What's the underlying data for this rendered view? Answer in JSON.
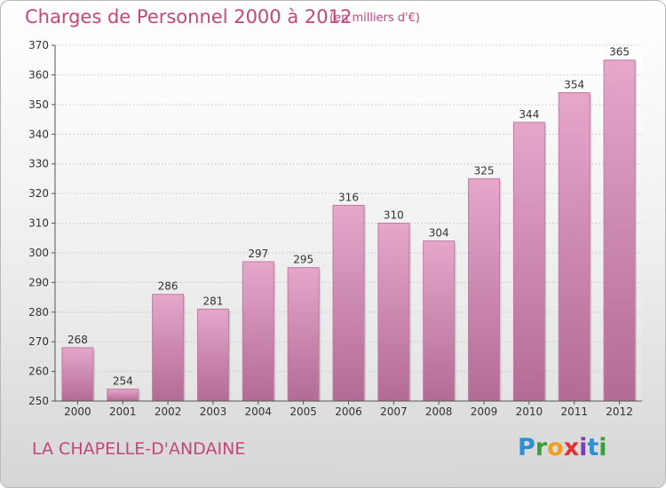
{
  "title": "Charges de Personnel 2000 à 2012",
  "subtitle": "(en milliers d'€)",
  "commune": "LA CHAPELLE-D'ANDAINE",
  "logo": {
    "letters": [
      "P",
      "r",
      "o",
      "x",
      "i",
      "t",
      "i"
    ],
    "colors": [
      "#2f8fd0",
      "#3aa13a",
      "#f0a020",
      "#e03030",
      "#7a3fb0",
      "#2f8fd0",
      "#3aa13a"
    ]
  },
  "colors": {
    "bar": "#c97aa7",
    "accent": "#c4467a"
  },
  "chart_data": {
    "type": "bar",
    "categories": [
      "2000",
      "2001",
      "2002",
      "2003",
      "2004",
      "2005",
      "2006",
      "2007",
      "2008",
      "2009",
      "2010",
      "2011",
      "2012"
    ],
    "values": [
      268,
      254,
      286,
      281,
      297,
      295,
      316,
      310,
      304,
      325,
      344,
      354,
      365
    ],
    "ylim": [
      250,
      370
    ],
    "yticks": [
      250,
      260,
      270,
      280,
      290,
      300,
      310,
      320,
      330,
      340,
      350,
      360,
      370
    ],
    "grid": true
  }
}
